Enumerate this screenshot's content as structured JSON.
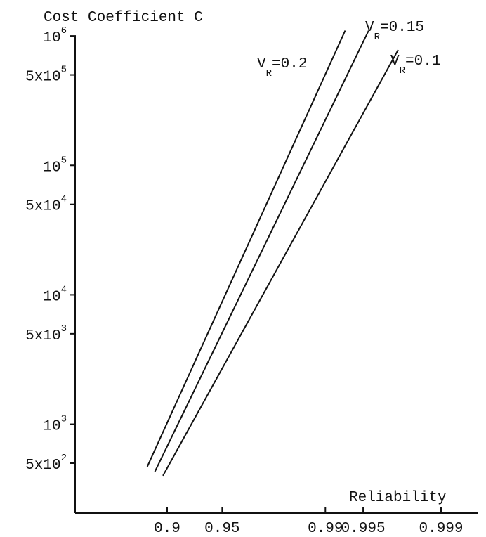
{
  "chart_data": {
    "type": "line",
    "ylabel": "Cost Coefficient C",
    "xlabel": "Reliability",
    "y_scale": "log",
    "ylim": [
      300,
      1300000
    ],
    "y_ticks": [
      {
        "value": 500,
        "mantissa": "5x10",
        "exponent": "2"
      },
      {
        "value": 1000,
        "mantissa": "10",
        "exponent": "3"
      },
      {
        "value": 5000,
        "mantissa": "5x10",
        "exponent": "3"
      },
      {
        "value": 10000,
        "mantissa": "10",
        "exponent": "4"
      },
      {
        "value": 50000,
        "mantissa": "5x10",
        "exponent": "4"
      },
      {
        "value": 100000,
        "mantissa": "10",
        "exponent": "5"
      },
      {
        "value": 500000,
        "mantissa": "5x10",
        "exponent": "5"
      },
      {
        "value": 1000000,
        "mantissa": "10",
        "exponent": "6"
      }
    ],
    "x_ticks": [
      "0.9",
      "0.95",
      "0.99",
      "0.995",
      "0.999"
    ],
    "series": [
      {
        "name": "0.2",
        "label_prefix": "V",
        "label_sub": "R",
        "label_suffix": "=0.2",
        "x": [
          0.875,
          0.993
        ],
        "y": [
          470,
          1100000
        ]
      },
      {
        "name": "0.15",
        "label_prefix": "V",
        "label_sub": "R",
        "label_suffix": "=0.15",
        "x": [
          0.885,
          0.9955
        ],
        "y": [
          430,
          1100000
        ]
      },
      {
        "name": "0.1",
        "label_prefix": "V",
        "label_sub": "R",
        "label_suffix": "=0.1",
        "x": [
          0.895,
          0.9975
        ],
        "y": [
          400,
          780000
        ]
      }
    ],
    "grid": false,
    "legend": "none"
  }
}
